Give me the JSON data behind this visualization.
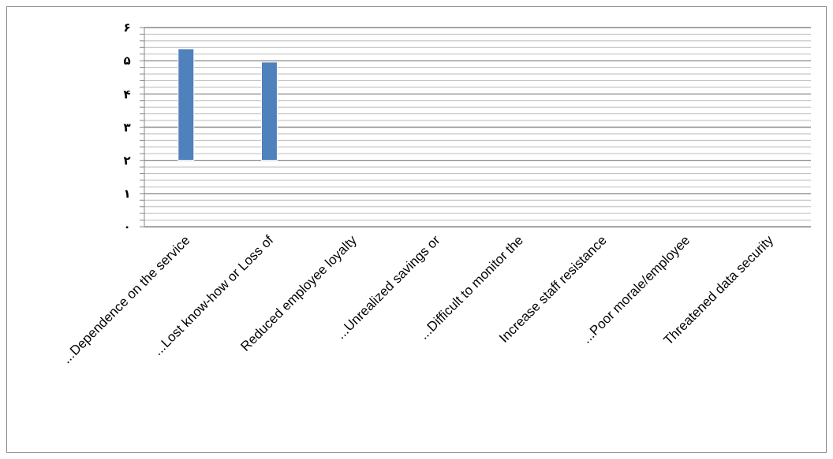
{
  "chart_data": {
    "type": "bar",
    "categories": [
      "...Dependence on the service",
      "...Lost know-how or Loss of",
      "Reduced employee loyalty",
      "...Unrealized savings or",
      "...Difficult to monitor the",
      "Increase staff resistance",
      "...Poor morale/employee",
      "Threatened data security"
    ],
    "values": [
      3.36,
      2.96,
      null,
      null,
      null,
      null,
      null,
      null
    ],
    "base": [
      2,
      2,
      null,
      null,
      null,
      null,
      null,
      null
    ],
    "color": "#4f81bd",
    "ylim": [
      0,
      6
    ],
    "yticks": [
      {
        "value": 0,
        "label": "۰"
      },
      {
        "value": 0.2,
        "label": null
      },
      {
        "value": 0.4,
        "label": null
      },
      {
        "value": 0.6,
        "label": null
      },
      {
        "value": 0.8,
        "label": null
      },
      {
        "value": 1,
        "label": "۱"
      },
      {
        "value": 1.2,
        "label": null
      },
      {
        "value": 1.4,
        "label": null
      },
      {
        "value": 1.6,
        "label": null
      },
      {
        "value": 1.8,
        "label": null
      },
      {
        "value": 2,
        "label": "۲"
      },
      {
        "value": 2.2,
        "label": null
      },
      {
        "value": 2.4,
        "label": null
      },
      {
        "value": 2.6,
        "label": null
      },
      {
        "value": 2.8,
        "label": null
      },
      {
        "value": 3,
        "label": "۳"
      },
      {
        "value": 3.2,
        "label": null
      },
      {
        "value": 3.4,
        "label": null
      },
      {
        "value": 3.6,
        "label": null
      },
      {
        "value": 3.8,
        "label": null
      },
      {
        "value": 4,
        "label": "۴"
      },
      {
        "value": 4.2,
        "label": null
      },
      {
        "value": 4.4,
        "label": null
      },
      {
        "value": 4.6,
        "label": null
      },
      {
        "value": 4.8,
        "label": null
      },
      {
        "value": 5,
        "label": "۵"
      },
      {
        "value": 5.2,
        "label": null
      },
      {
        "value": 5.4,
        "label": null
      },
      {
        "value": 5.6,
        "label": null
      },
      {
        "value": 5.8,
        "label": null
      },
      {
        "value": 6,
        "label": "۶"
      }
    ],
    "grid": "y"
  }
}
